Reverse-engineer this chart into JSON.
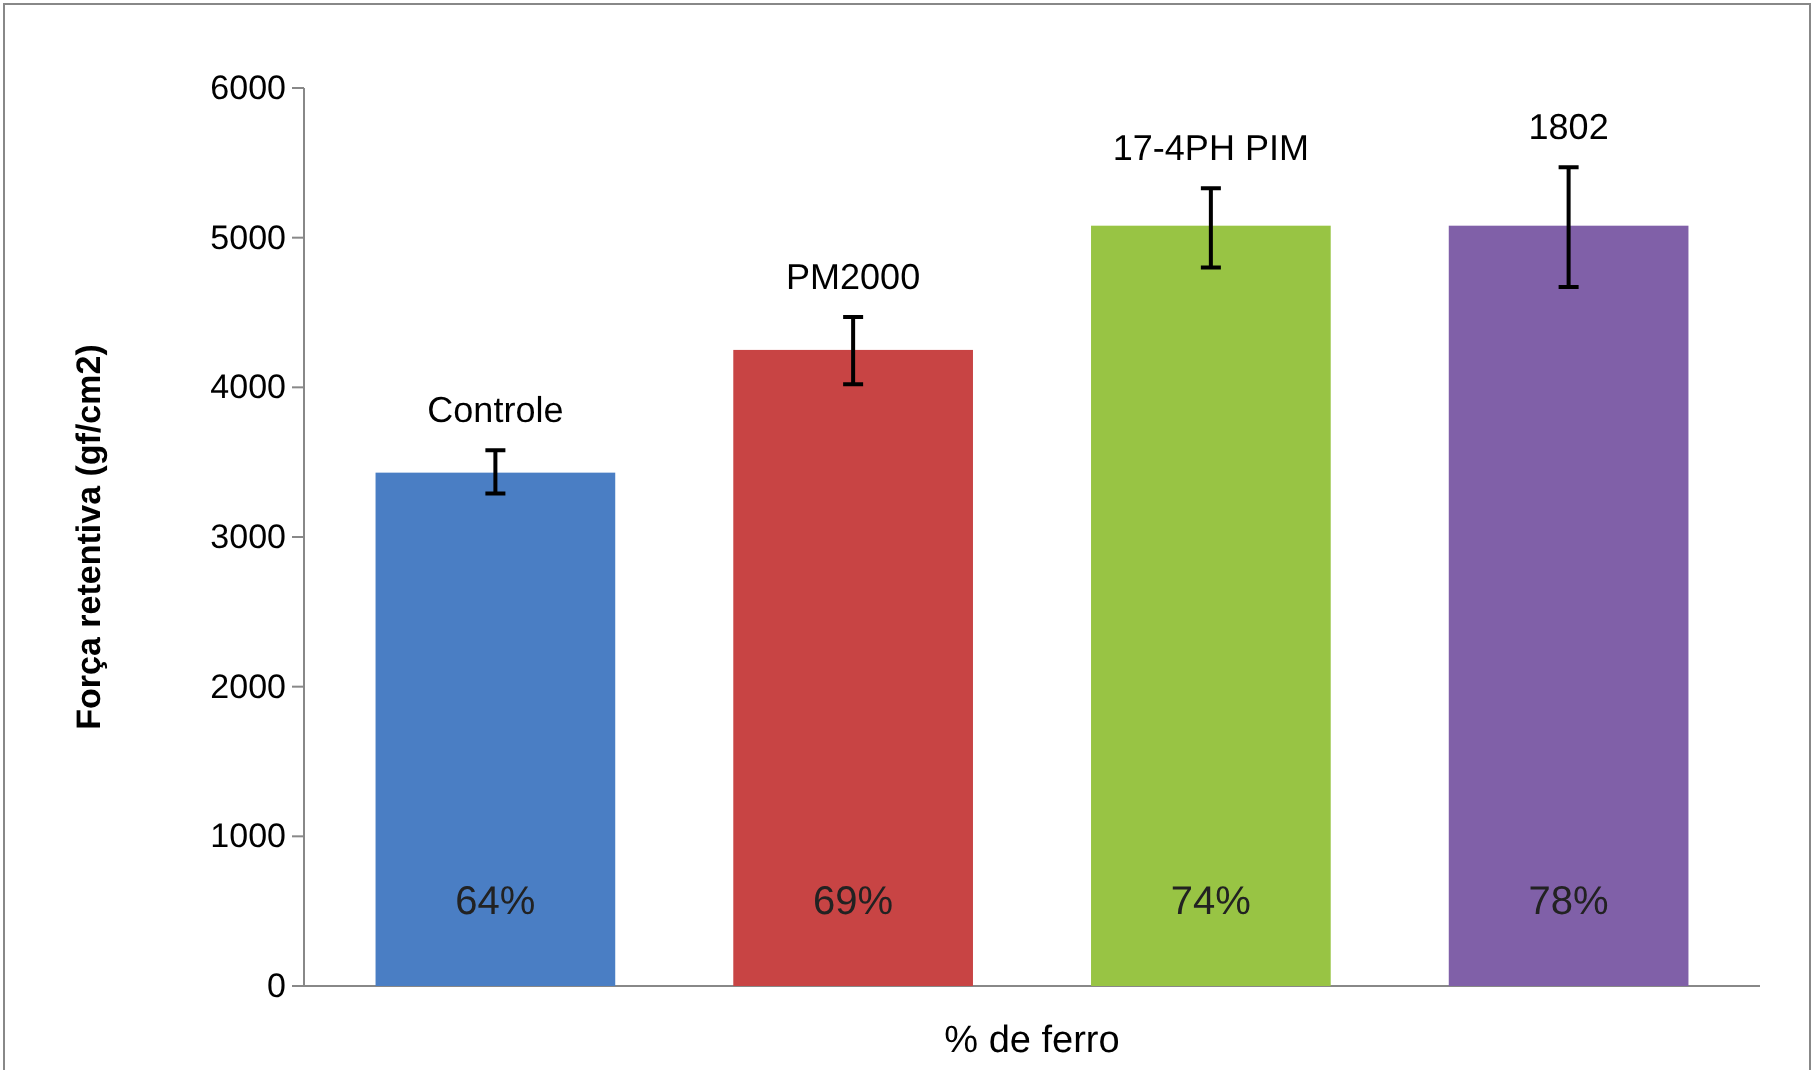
{
  "chart_data": {
    "type": "bar",
    "xlabel": "% de ferro",
    "ylabel": "Força retentiva (gf/cm2)",
    "categories": [
      "64%",
      "69%",
      "74%",
      "78%"
    ],
    "values": [
      3430,
      4250,
      5080,
      5080
    ],
    "errors": [
      [
        3290,
        3580
      ],
      [
        4020,
        4470
      ],
      [
        4800,
        5330
      ],
      [
        4670,
        5470
      ]
    ],
    "colors": [
      "#4a7ec4",
      "#c84444",
      "#98c444",
      "#8060a8"
    ],
    "ylim": [
      0,
      6000
    ],
    "yticks": [
      0,
      1000,
      2000,
      3000,
      4000,
      5000,
      6000
    ],
    "annotations": [
      {
        "text": "Controle",
        "x": "64%",
        "y": 3580
      },
      {
        "text": "PM2000",
        "x": "69%",
        "y": 4470
      },
      {
        "text": "17-4PH PIM",
        "x": "74%",
        "y": 5330
      },
      {
        "text": "1802",
        "x": "78%",
        "y": 5470
      }
    ]
  }
}
